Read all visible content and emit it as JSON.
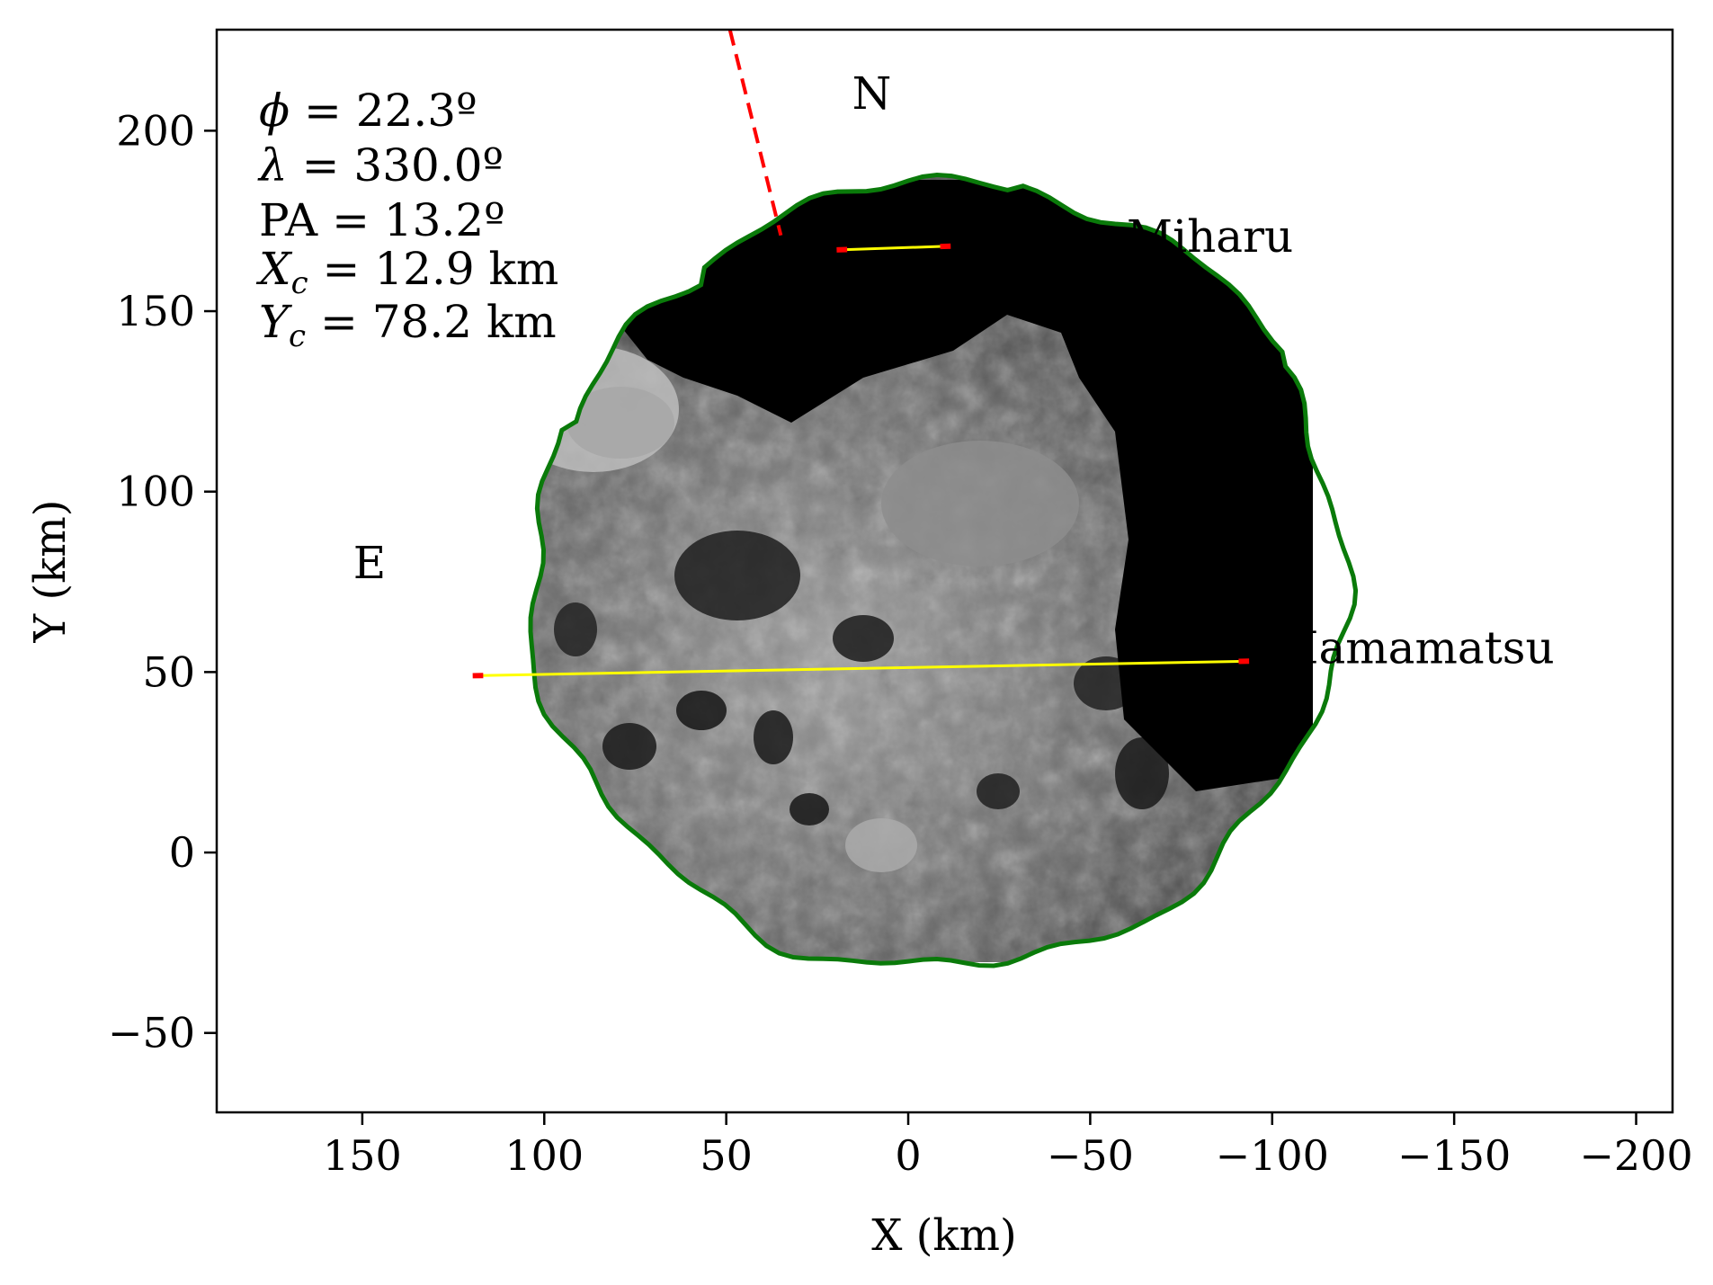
{
  "chart_data": {
    "type": "scatter",
    "title": "",
    "xlabel": "X (km)",
    "ylabel": "Y (km)",
    "xlim": [
      190,
      -210
    ],
    "ylim": [
      -72,
      228
    ],
    "x_inverted": true,
    "xticks": [
      150,
      100,
      50,
      0,
      -50,
      -100,
      -150,
      -200
    ],
    "xtick_labels": [
      "150",
      "100",
      "50",
      "0",
      "−50",
      "−100",
      "−150",
      "−200"
    ],
    "yticks": [
      200,
      150,
      100,
      50,
      0,
      -50
    ],
    "ytick_labels": [
      "200",
      "150",
      "100",
      "50",
      "0",
      "−50"
    ],
    "grid": false,
    "parameters": [
      {
        "symbol": "ϕ",
        "rest": " = 22.3º"
      },
      {
        "symbol": "λ",
        "rest": " = 330.0º"
      },
      {
        "symbol": "PA",
        "rest": " = 13.2º"
      },
      {
        "symbol": "X",
        "sub": "c",
        "rest": " = 12.9 km"
      },
      {
        "symbol": "Y",
        "sub": "c",
        "rest": " = 78.2 km"
      }
    ],
    "direction_labels": [
      {
        "text": "N",
        "x": 10,
        "y": 210
      },
      {
        "text": "E",
        "x": 148,
        "y": 80
      }
    ],
    "chords": [
      {
        "station": "Miharu",
        "x1": 19,
        "y1": 167,
        "x2": -11,
        "y2": 168,
        "label_x": -60,
        "label_y": 170
      },
      {
        "station": "Hamamatsu",
        "x1": 119,
        "y1": 49,
        "x2": -93,
        "y2": 53,
        "label_x": -102,
        "label_y": 56
      }
    ],
    "pole_direction": {
      "x1": 49,
      "y1": 228,
      "x2": 35,
      "y2": 171,
      "color": "#ff0000",
      "style": "dashed"
    },
    "limb_outline": {
      "color": "#0a7a0a"
    },
    "colors": {
      "chord": "#ffff00",
      "chord_end": "#ff0000",
      "limb": "#0a7a0a",
      "pole": "#ff0000"
    }
  }
}
